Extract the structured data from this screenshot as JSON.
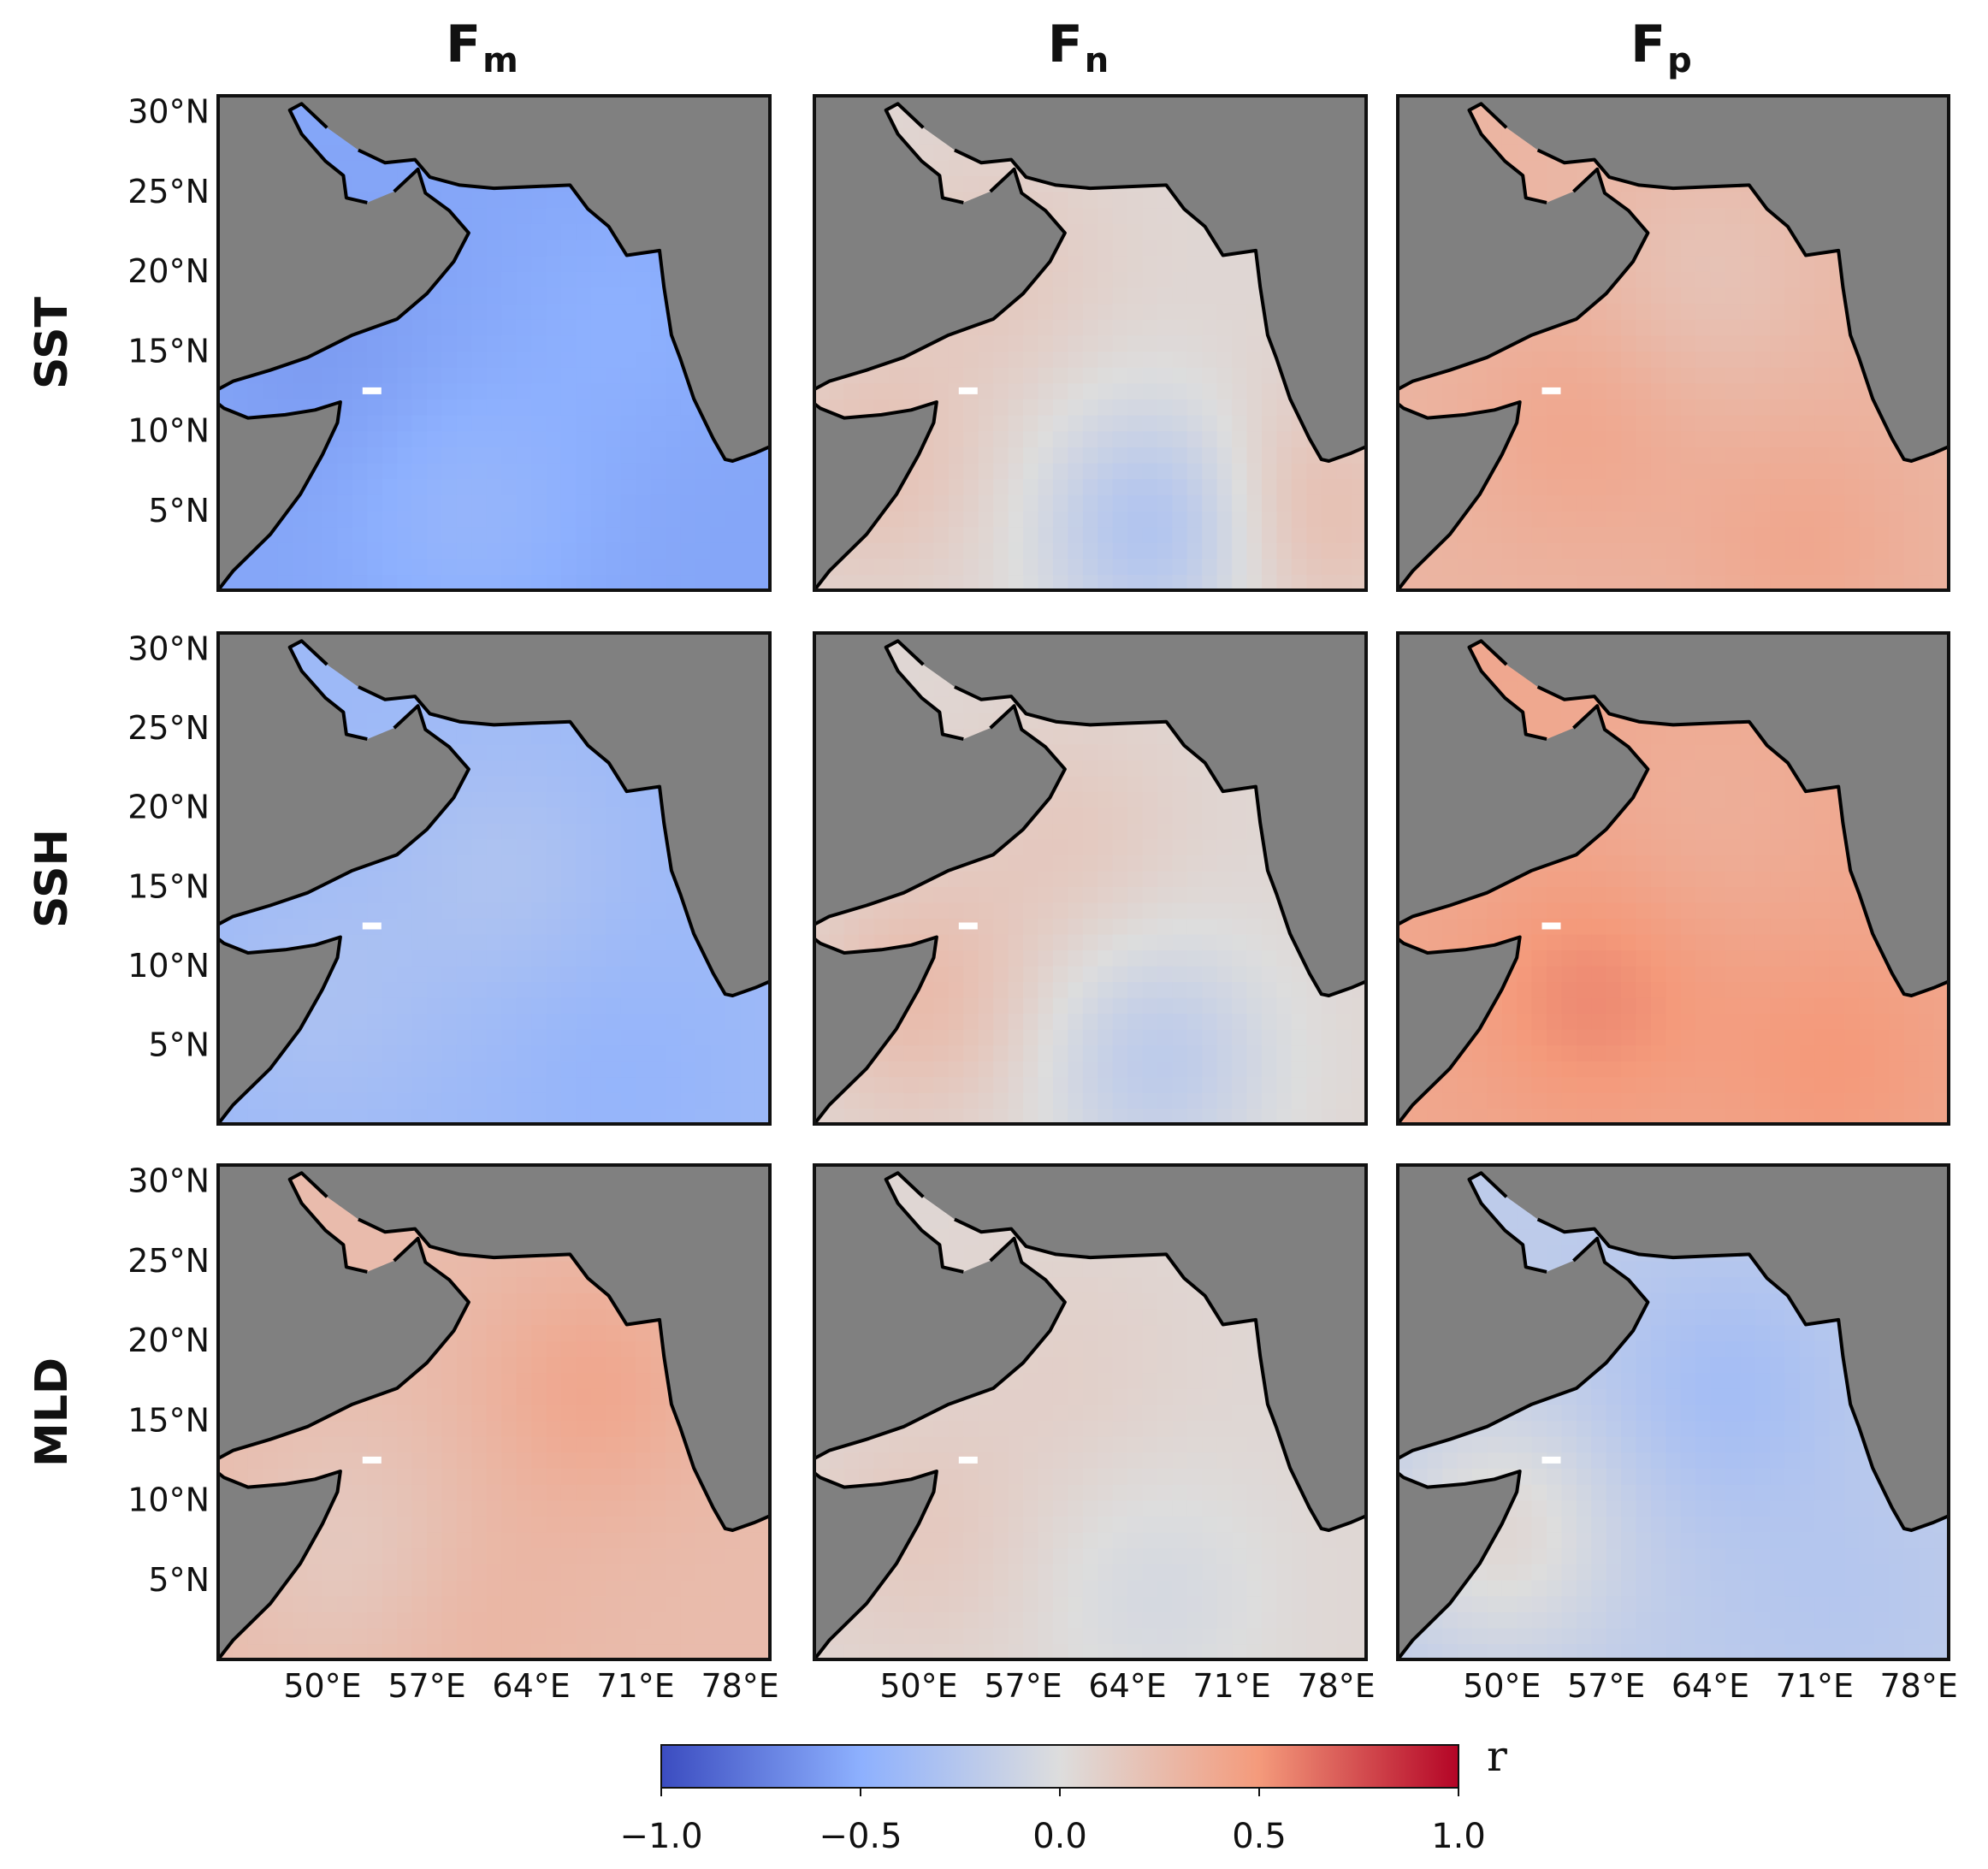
{
  "chart_data": {
    "type": "heatmap",
    "title": "",
    "columns": [
      {
        "label": "F",
        "subscript": "m"
      },
      {
        "label": "F",
        "subscript": "n"
      },
      {
        "label": "F",
        "subscript": "p"
      }
    ],
    "rows": [
      "SST",
      "SSH",
      "MLD"
    ],
    "lat_ticks": [
      "30°N",
      "25°N",
      "20°N",
      "15°N",
      "10°N",
      "5°N"
    ],
    "lon_ticks": [
      "50°E",
      "57°E",
      "64°E",
      "71°E",
      "78°E"
    ],
    "lon_range": [
      43,
      80
    ],
    "lat_range": [
      0,
      31
    ],
    "mean_correlation": [
      [
        -0.55,
        0.05,
        0.3
      ],
      [
        -0.4,
        0.05,
        0.4
      ],
      [
        0.25,
        0.05,
        -0.2
      ]
    ],
    "colorbar": {
      "label": "r",
      "range": [
        -1.0,
        1.0
      ],
      "ticks": [
        "−1.0",
        "−0.5",
        "0.0",
        "0.5",
        "1.0"
      ],
      "tick_values": [
        -1.0,
        -0.5,
        0.0,
        0.5,
        1.0
      ],
      "colormap": "coolwarm"
    },
    "colors": {
      "land": "#808080",
      "coast": "#000000",
      "cold": "#3b4cc0",
      "neutral": "#dddddd",
      "warm": "#b40426"
    }
  }
}
